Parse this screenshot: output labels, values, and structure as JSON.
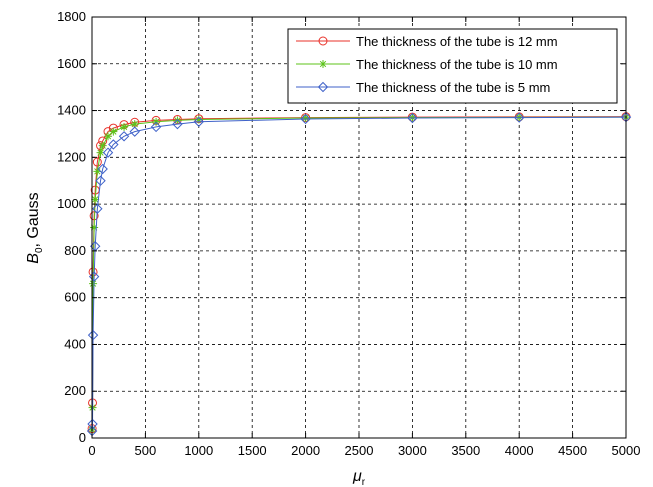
{
  "chart_data": {
    "type": "line",
    "title": "",
    "xlabel": {
      "symbol": "μ",
      "sub": "r"
    },
    "ylabel": {
      "symbol": "B",
      "sub": "0",
      "suffix": ", Gauss"
    },
    "xlim": [
      0,
      5000
    ],
    "ylim": [
      0,
      1800
    ],
    "xticks": [
      0,
      500,
      1000,
      1500,
      2000,
      2500,
      3000,
      3500,
      4000,
      4500,
      5000
    ],
    "yticks": [
      0,
      200,
      400,
      600,
      800,
      1000,
      1200,
      1400,
      1600,
      1800
    ],
    "grid": true,
    "legend_position": "top-right",
    "series": [
      {
        "name": "The thickness of the tube is 12 mm",
        "color": "#e8322a",
        "marker": "circle",
        "x": [
          1,
          5,
          10,
          20,
          30,
          50,
          80,
          100,
          150,
          200,
          300,
          400,
          600,
          800,
          1000,
          2000,
          3000,
          4000,
          5000
        ],
        "y": [
          40,
          150,
          710,
          950,
          1060,
          1180,
          1250,
          1270,
          1310,
          1325,
          1340,
          1350,
          1358,
          1362,
          1365,
          1370,
          1372,
          1373,
          1374
        ]
      },
      {
        "name": "The thickness of the tube is 10 mm",
        "color": "#5cc31a",
        "marker": "star",
        "x": [
          1,
          5,
          10,
          20,
          30,
          50,
          80,
          100,
          150,
          200,
          300,
          400,
          600,
          800,
          1000,
          2000,
          3000,
          4000,
          5000
        ],
        "y": [
          35,
          130,
          660,
          900,
          1020,
          1140,
          1220,
          1250,
          1290,
          1310,
          1330,
          1342,
          1352,
          1358,
          1362,
          1368,
          1370,
          1371,
          1372
        ]
      },
      {
        "name": "The thickness of the tube is 5 mm",
        "color": "#3f62c9",
        "marker": "diamond",
        "x": [
          1,
          5,
          10,
          20,
          30,
          50,
          80,
          100,
          150,
          200,
          300,
          400,
          600,
          800,
          1000,
          2000,
          3000,
          4000,
          5000
        ],
        "y": [
          30,
          60,
          440,
          690,
          820,
          980,
          1100,
          1150,
          1220,
          1255,
          1290,
          1310,
          1330,
          1342,
          1352,
          1364,
          1368,
          1370,
          1372
        ]
      }
    ]
  }
}
